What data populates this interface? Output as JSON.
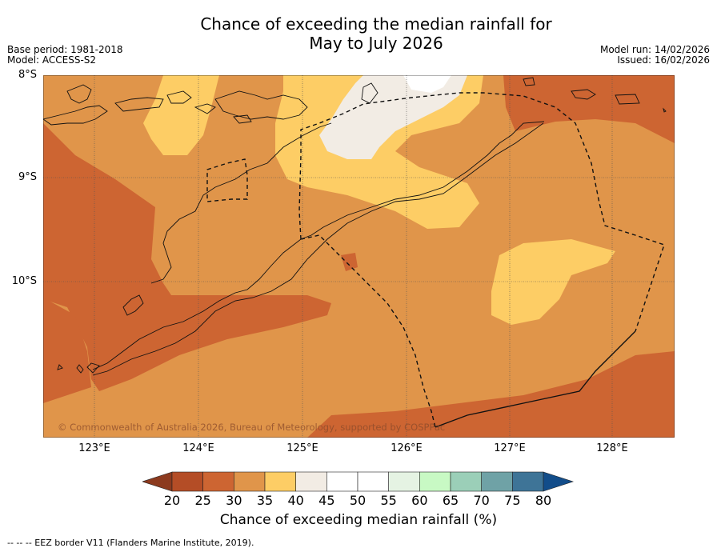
{
  "title_line1": "Chance of exceeding the median rainfall for",
  "title_line2": "May to July 2026",
  "base_period": "Base period: 1981-2018",
  "model": "Model: ACCESS-S2",
  "model_run": "Model run: 14/02/2026",
  "issued": "Issued: 16/02/2026",
  "lat_labels": [
    "8°S",
    "9°S",
    "10°S"
  ],
  "lon_labels": [
    "123°E",
    "124°E",
    "125°E",
    "126°E",
    "127°E",
    "128°E"
  ],
  "colorbar": {
    "ticks": [
      "20",
      "25",
      "30",
      "35",
      "40",
      "45",
      "50",
      "55",
      "60",
      "65",
      "70",
      "75",
      "80"
    ],
    "colors": [
      "#8c3a1e",
      "#b44d26",
      "#cd6532",
      "#e0954a",
      "#fdcd65",
      "#f2ece4",
      "#ffffff",
      "#ffffff",
      "#e5f3e3",
      "#c8f9c4",
      "#9bcfb8",
      "#6fa2a6",
      "#3e7497",
      "#124d8a"
    ],
    "title": "Chance of exceeding median rainfall (%)"
  },
  "copyright": "© Commonwealth of Australia 2026, Bureau of Meteorology, supported by COSPPac",
  "footnote": "-- -- -- EEZ border V11 (Flanders Marine Institute, 2019)."
}
